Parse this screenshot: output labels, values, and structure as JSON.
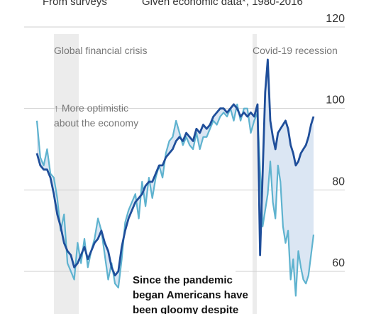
{
  "legend": {
    "surveys_label": "From surveys",
    "economic_label": "Given economic data*, 1980-2016",
    "surveys_color": "#5fb3cf",
    "economic_color": "#1f4e9a"
  },
  "annotations": {
    "gfc": "Global financial crisis",
    "covid": "Covid-19 recession",
    "optimistic_line1": "↑ More optimistic",
    "optimistic_line2": "about the economy",
    "callout_line1": "Since the pandemic",
    "callout_line2": "began Americans have",
    "callout_line3": "been gloomy despite"
  },
  "colors": {
    "surveys": "#5fb3cf",
    "economic": "#1f4e9a",
    "fill_gap": "#dbe6f3",
    "recession_shade": "#ececec",
    "grid": "#cfcfcf",
    "text": "#333333"
  },
  "chart_data": {
    "type": "line",
    "ylim": [
      55,
      120
    ],
    "yticks": [
      60,
      80,
      100,
      120
    ],
    "ytick_labels": [
      "60",
      "80",
      "100",
      "120"
    ],
    "x": [
      2006.9,
      2007.1,
      2007.3,
      2007.5,
      2007.7,
      2007.9,
      2008.1,
      2008.3,
      2008.5,
      2008.7,
      2008.9,
      2009.1,
      2009.3,
      2009.5,
      2009.7,
      2009.9,
      2010.1,
      2010.3,
      2010.5,
      2010.7,
      2010.9,
      2011.1,
      2011.3,
      2011.5,
      2011.7,
      2011.9,
      2012.1,
      2012.3,
      2012.5,
      2012.7,
      2012.9,
      2013.1,
      2013.3,
      2013.5,
      2013.7,
      2013.9,
      2014.1,
      2014.3,
      2014.5,
      2014.7,
      2014.9,
      2015.1,
      2015.3,
      2015.5,
      2015.7,
      2015.9,
      2016.1,
      2016.3,
      2016.5,
      2016.7,
      2016.9,
      2017.1,
      2017.3,
      2017.5,
      2017.7,
      2017.9,
      2018.1,
      2018.3,
      2018.5,
      2018.7,
      2018.9,
      2019.1,
      2019.3,
      2019.5,
      2019.7,
      2019.9,
      2020.05,
      2020.2,
      2020.35,
      2020.5,
      2020.65,
      2020.8,
      2020.95,
      2021.1,
      2021.25,
      2021.4,
      2021.55,
      2021.7,
      2021.85,
      2022.0,
      2022.15,
      2022.3,
      2022.45,
      2022.6,
      2022.75,
      2022.9,
      2023.05,
      2023.2
    ],
    "series": [
      {
        "name": "From surveys",
        "values": [
          97,
          88,
          86,
          90,
          84,
          83,
          78,
          70,
          74,
          62,
          60,
          58,
          67,
          62,
          68,
          61,
          65,
          68,
          73,
          70,
          64,
          58,
          62,
          57,
          56,
          63,
          72,
          75,
          77,
          79,
          73,
          82,
          76,
          83,
          78,
          83,
          86,
          83,
          89,
          92,
          93,
          97,
          94,
          91,
          93,
          91,
          90,
          94,
          90,
          93,
          93,
          95,
          97,
          96,
          98,
          99,
          98,
          100,
          97,
          101,
          97,
          100,
          100,
          94,
          97,
          99,
          85,
          71,
          75,
          79,
          87,
          77,
          73,
          86,
          82,
          71,
          67,
          70,
          58,
          63,
          54,
          65,
          61,
          58,
          57,
          59,
          64,
          69
        ]
      },
      {
        "name": "Given economic data*, 1980-2016",
        "values": [
          89,
          86,
          85,
          85,
          83,
          79,
          74,
          71,
          67,
          65,
          64,
          61,
          62,
          64,
          66,
          63,
          65,
          67,
          68,
          70,
          67,
          65,
          61,
          59,
          60,
          66,
          70,
          73,
          75,
          77,
          78,
          79,
          81,
          82,
          82,
          84,
          86,
          86,
          88,
          89,
          90,
          92,
          93,
          92,
          94,
          93,
          92,
          95,
          94,
          96,
          95,
          96,
          98,
          99,
          100,
          100,
          99,
          100,
          101,
          100,
          98,
          99,
          98,
          99,
          98,
          101,
          64,
          84,
          104,
          112,
          97,
          93,
          90,
          94,
          95,
          96,
          97,
          95,
          91,
          89,
          86,
          87,
          89,
          90,
          91,
          93,
          96,
          98
        ]
      }
    ]
  }
}
